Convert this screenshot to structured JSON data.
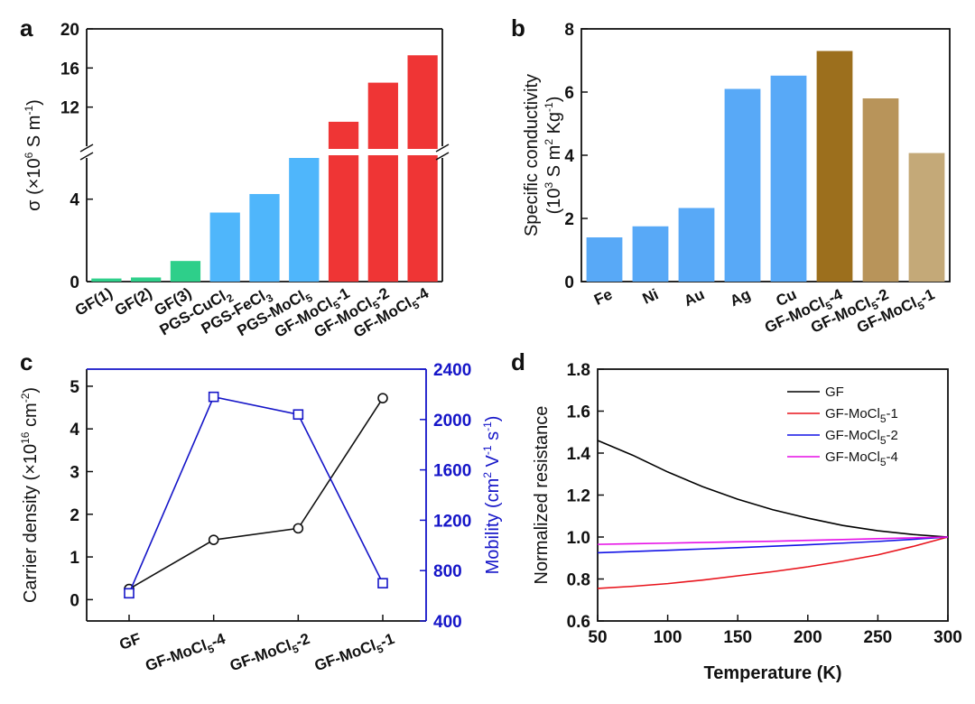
{
  "figure": {
    "panel_letters": [
      "a",
      "b",
      "c",
      "d"
    ]
  },
  "chart_data": [
    {
      "panel": "a",
      "type": "bar",
      "categories": [
        {
          "base": "GF(1)",
          "sub": "",
          "tail": ""
        },
        {
          "base": "GF(2)",
          "sub": "",
          "tail": ""
        },
        {
          "base": "GF(3)",
          "sub": "",
          "tail": ""
        },
        {
          "base": "PGS-CuCl",
          "sub": "2",
          "tail": ""
        },
        {
          "base": "PGS-FeCl",
          "sub": "3",
          "tail": ""
        },
        {
          "base": "PGS-MoCl",
          "sub": "5",
          "tail": ""
        },
        {
          "base": "GF-MoCl",
          "sub": "5",
          "tail": "-1"
        },
        {
          "base": "GF-MoCl",
          "sub": "5",
          "tail": "-2"
        },
        {
          "base": "GF-MoCl",
          "sub": "5",
          "tail": "-4"
        }
      ],
      "values": [
        0.15,
        0.2,
        1.0,
        3.35,
        4.25,
        6.0,
        10.5,
        14.5,
        17.3
      ],
      "colors": [
        "#2ecf8a",
        "#2ecf8a",
        "#2ecf8a",
        "#4fb6fb",
        "#4fb6fb",
        "#4fb6fb",
        "#ef3535",
        "#ef3535",
        "#ef3535"
      ],
      "ylabel": {
        "parts": [
          "σ (×10",
          "6",
          " S m",
          "-1",
          ")"
        ]
      },
      "axis_break": {
        "lower_range": [
          0,
          6
        ],
        "upper_range": [
          8,
          20
        ]
      },
      "yticks": [
        0,
        4,
        12,
        16,
        20
      ],
      "ytick_labels": [
        "0",
        "4",
        "12",
        "16",
        "20"
      ]
    },
    {
      "panel": "b",
      "type": "bar",
      "categories": [
        {
          "base": "Fe",
          "sub": "",
          "tail": ""
        },
        {
          "base": "Ni",
          "sub": "",
          "tail": ""
        },
        {
          "base": "Au",
          "sub": "",
          "tail": ""
        },
        {
          "base": "Ag",
          "sub": "",
          "tail": ""
        },
        {
          "base": "Cu",
          "sub": "",
          "tail": ""
        },
        {
          "base": "GF-MoCl",
          "sub": "5",
          "tail": "-4"
        },
        {
          "base": "GF-MoCl",
          "sub": "5",
          "tail": "-2"
        },
        {
          "base": "GF-MoCl",
          "sub": "5",
          "tail": "-1"
        }
      ],
      "values": [
        1.4,
        1.75,
        2.33,
        6.1,
        6.52,
        7.3,
        5.8,
        4.07
      ],
      "colors": [
        "#58a9f7",
        "#58a9f7",
        "#58a9f7",
        "#58a9f7",
        "#58a9f7",
        "#9c6f1d",
        "#b8945a",
        "#c4a978"
      ],
      "ylabel_line1": "Specific conductivity",
      "ylabel_line2": {
        "parts": [
          "(10",
          "3",
          " S m",
          "2",
          " Kg",
          "-1",
          ")"
        ]
      },
      "ylim": [
        0,
        8
      ],
      "yticks": [
        0,
        2,
        4,
        6,
        8
      ],
      "ytick_labels": [
        "0",
        "2",
        "4",
        "6",
        "8"
      ]
    },
    {
      "panel": "c",
      "type": "line",
      "categories": [
        {
          "base": "GF",
          "sub": "",
          "tail": ""
        },
        {
          "base": "GF-MoCl",
          "sub": "5",
          "tail": "-4"
        },
        {
          "base": "GF-MoCl",
          "sub": "5",
          "tail": "-2"
        },
        {
          "base": "GF-MoCl",
          "sub": "5",
          "tail": "-1"
        }
      ],
      "series": [
        {
          "axis": "left",
          "marker": "circle",
          "color": "#111111",
          "values": [
            0.25,
            1.4,
            1.67,
            4.72
          ]
        },
        {
          "axis": "right",
          "marker": "square",
          "color": "#1515c8",
          "values": [
            620,
            2180,
            2040,
            700
          ]
        }
      ],
      "left_axis": {
        "ylim": [
          -0.5,
          5.4
        ],
        "yticks": [
          0,
          1,
          2,
          3,
          4,
          5
        ],
        "ytick_labels": [
          "0",
          "1",
          "2",
          "3",
          "4",
          "5"
        ],
        "label": {
          "parts": [
            "Carrier density (×10",
            "16",
            " cm",
            "-2",
            ")"
          ]
        }
      },
      "right_axis": {
        "ylim": [
          400,
          2400
        ],
        "yticks": [
          400,
          800,
          1200,
          1600,
          2000,
          2400
        ],
        "ytick_labels": [
          "400",
          "800",
          "1200",
          "1600",
          "2000",
          "2400"
        ],
        "label": {
          "parts": [
            "Mobility (cm",
            "2",
            " V",
            "-1",
            " s",
            "-1",
            ")"
          ]
        },
        "color": "#1515c8"
      }
    },
    {
      "panel": "d",
      "type": "line",
      "xlabel": "Temperature (K)",
      "ylabel": "Normalized resistance",
      "xlim": [
        50,
        300
      ],
      "ylim": [
        0.6,
        1.8
      ],
      "xticks": [
        50,
        100,
        150,
        200,
        250,
        300
      ],
      "xtick_labels": [
        "50",
        "100",
        "150",
        "200",
        "250",
        "300"
      ],
      "yticks": [
        0.6,
        0.8,
        1.0,
        1.2,
        1.4,
        1.6,
        1.8
      ],
      "ytick_labels": [
        "0.6",
        "0.8",
        "1.0",
        "1.2",
        "1.4",
        "1.6",
        "1.8"
      ],
      "legend_position": "top-right",
      "x": [
        50,
        75,
        100,
        125,
        150,
        175,
        200,
        225,
        250,
        275,
        300
      ],
      "series": [
        {
          "legend": {
            "base": "GF",
            "sub": "",
            "tail": ""
          },
          "color": "#000000",
          "values": [
            1.46,
            1.39,
            1.31,
            1.24,
            1.18,
            1.13,
            1.09,
            1.055,
            1.03,
            1.012,
            1.0
          ]
        },
        {
          "legend": {
            "base": "GF-MoCl",
            "sub": "5",
            "tail": "-1"
          },
          "color": "#e8141c",
          "values": [
            0.755,
            0.765,
            0.778,
            0.795,
            0.815,
            0.835,
            0.858,
            0.885,
            0.915,
            0.955,
            1.0
          ]
        },
        {
          "legend": {
            "base": "GF-MoCl",
            "sub": "5",
            "tail": "-2"
          },
          "color": "#1212e6",
          "values": [
            0.925,
            0.931,
            0.937,
            0.943,
            0.949,
            0.956,
            0.963,
            0.971,
            0.979,
            0.989,
            1.0
          ]
        },
        {
          "legend": {
            "base": "GF-MoCl",
            "sub": "5",
            "tail": "-4"
          },
          "color": "#e60fe6",
          "values": [
            0.965,
            0.968,
            0.971,
            0.974,
            0.977,
            0.98,
            0.984,
            0.988,
            0.992,
            0.996,
            1.0
          ]
        }
      ]
    }
  ]
}
